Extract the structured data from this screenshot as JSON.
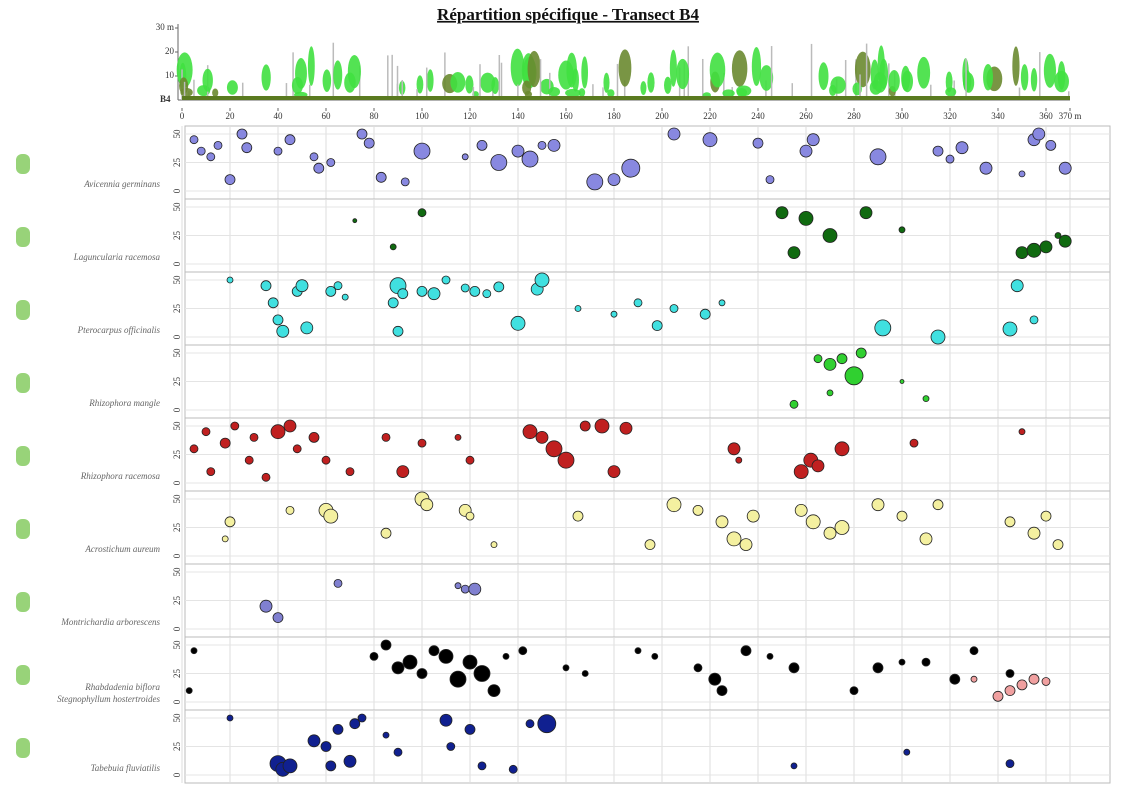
{
  "chart_data": {
    "type": "scatter",
    "title": "Répartition spécifique - Transect B4",
    "profile_label": "B4",
    "profile_ylim": [
      0,
      30
    ],
    "profile_yticks": [
      {
        "value": 30,
        "label": "30 m"
      },
      20,
      10
    ],
    "xlim": [
      0,
      370
    ],
    "xticks": [
      0,
      20,
      40,
      60,
      80,
      100,
      120,
      140,
      160,
      180,
      200,
      220,
      240,
      260,
      280,
      300,
      320,
      340,
      360,
      {
        "value": 370,
        "label": "370 m"
      }
    ],
    "ylim": [
      0,
      50
    ],
    "yticks": [
      0,
      25,
      50
    ],
    "grid": true,
    "panels": [
      {
        "series": [
          {
            "name": "Avicennia germinans",
            "color": "#8888e0",
            "x": [
              5,
              8,
              12,
              15,
              20,
              25,
              27,
              40,
              45,
              55,
              57,
              62,
              75,
              78,
              83,
              93,
              100,
              118,
              125,
              132,
              140,
              145,
              150,
              155,
              172,
              180,
              187,
              205,
              220,
              240,
              245,
              260,
              263,
              290,
              315,
              320,
              325,
              335,
              350,
              355,
              357,
              362,
              368
            ],
            "y": [
              45,
              35,
              30,
              40,
              10,
              50,
              38,
              35,
              45,
              30,
              20,
              25,
              50,
              42,
              12,
              8,
              35,
              30,
              40,
              25,
              35,
              28,
              40,
              40,
              8,
              10,
              20,
              50,
              45,
              42,
              10,
              35,
              45,
              30,
              35,
              28,
              38,
              20,
              15,
              45,
              50,
              40,
              20
            ],
            "sizes": [
              4,
              4,
              4,
              4,
              5,
              5,
              5,
              4,
              5,
              4,
              5,
              4,
              5,
              5,
              5,
              4,
              8,
              3,
              5,
              8,
              6,
              8,
              4,
              6,
              8,
              6,
              9,
              6,
              7,
              5,
              4,
              6,
              6,
              8,
              5,
              4,
              6,
              6,
              3,
              6,
              6,
              5,
              6
            ]
          }
        ]
      },
      {
        "series": [
          {
            "name": "Laguncularia racemosa",
            "color": "#106a10",
            "x": [
              72,
              88,
              100,
              250,
              255,
              260,
              270,
              285,
              300,
              350,
              355,
              360,
              365,
              368
            ],
            "y": [
              38,
              15,
              45,
              45,
              10,
              40,
              25,
              45,
              30,
              10,
              12,
              15,
              25,
              20
            ],
            "sizes": [
              2,
              3,
              4,
              6,
              6,
              7,
              7,
              6,
              3,
              6,
              7,
              6,
              3,
              6
            ]
          }
        ]
      },
      {
        "series": [
          {
            "name": "Pterocarpus officinalis",
            "color": "#40e0e0",
            "x": [
              20,
              35,
              38,
              40,
              42,
              48,
              50,
              52,
              62,
              65,
              68,
              88,
              90,
              92,
              90,
              100,
              105,
              110,
              118,
              122,
              127,
              132,
              140,
              148,
              150,
              165,
              180,
              190,
              198,
              205,
              218,
              225,
              292,
              315,
              345,
              348,
              355
            ],
            "y": [
              50,
              45,
              30,
              15,
              5,
              40,
              45,
              8,
              40,
              45,
              35,
              30,
              45,
              38,
              5,
              40,
              38,
              50,
              43,
              40,
              38,
              44,
              12,
              42,
              50,
              25,
              20,
              30,
              10,
              25,
              20,
              30,
              8,
              0,
              7,
              45,
              15
            ],
            "sizes": [
              3,
              5,
              5,
              5,
              6,
              5,
              6,
              6,
              5,
              4,
              3,
              5,
              8,
              5,
              5,
              5,
              6,
              4,
              4,
              5,
              4,
              5,
              7,
              6,
              7,
              3,
              3,
              4,
              5,
              4,
              5,
              3,
              8,
              7,
              7,
              6,
              4
            ]
          }
        ]
      },
      {
        "series": [
          {
            "name": "Rhizophora mangle",
            "color": "#30d030",
            "x": [
              255,
              265,
              270,
              270,
              275,
              280,
              283,
              300,
              310
            ],
            "y": [
              5,
              45,
              40,
              15,
              45,
              30,
              50,
              25,
              10
            ],
            "sizes": [
              4,
              4,
              6,
              3,
              5,
              9,
              5,
              2,
              3
            ]
          }
        ]
      },
      {
        "series": [
          {
            "name": "Rhizophora racemosa",
            "color": "#c02020",
            "x": [
              5,
              10,
              12,
              18,
              22,
              28,
              30,
              35,
              40,
              45,
              48,
              55,
              60,
              70,
              85,
              92,
              100,
              115,
              120,
              145,
              150,
              155,
              160,
              168,
              175,
              180,
              185,
              230,
              232,
              258,
              262,
              265,
              275,
              305,
              350
            ],
            "y": [
              30,
              45,
              10,
              35,
              50,
              20,
              40,
              5,
              45,
              50,
              30,
              40,
              20,
              10,
              40,
              10,
              35,
              40,
              20,
              45,
              40,
              30,
              20,
              50,
              50,
              10,
              48,
              30,
              20,
              10,
              20,
              15,
              30,
              35,
              45
            ],
            "sizes": [
              4,
              4,
              4,
              5,
              4,
              4,
              4,
              4,
              7,
              6,
              4,
              5,
              4,
              4,
              4,
              6,
              4,
              3,
              4,
              7,
              6,
              8,
              8,
              5,
              7,
              6,
              6,
              6,
              3,
              7,
              7,
              6,
              7,
              4,
              3
            ]
          }
        ]
      },
      {
        "series": [
          {
            "name": "Acrostichum aureum",
            "color": "#f4f0a0",
            "x": [
              18,
              20,
              45,
              60,
              62,
              85,
              100,
              102,
              118,
              120,
              130,
              165,
              195,
              205,
              215,
              225,
              230,
              235,
              238,
              258,
              263,
              270,
              275,
              290,
              300,
              310,
              315,
              345,
              355,
              360,
              365
            ],
            "y": [
              15,
              30,
              40,
              40,
              35,
              20,
              50,
              45,
              40,
              35,
              10,
              35,
              10,
              45,
              40,
              30,
              15,
              10,
              35,
              40,
              30,
              20,
              25,
              45,
              35,
              15,
              45,
              30,
              20,
              35,
              10
            ],
            "sizes": [
              3,
              5,
              4,
              7,
              7,
              5,
              7,
              6,
              6,
              4,
              3,
              5,
              5,
              7,
              5,
              6,
              7,
              6,
              6,
              6,
              7,
              6,
              7,
              6,
              5,
              6,
              5,
              5,
              6,
              5,
              5
            ]
          }
        ]
      },
      {
        "series": [
          {
            "name": "Montrichardia arborescens",
            "color": "#8080d0",
            "x": [
              35,
              40,
              65,
              115,
              118,
              122
            ],
            "y": [
              20,
              10,
              40,
              38,
              35,
              35
            ],
            "sizes": [
              6,
              5,
              4,
              3,
              4,
              6
            ]
          }
        ]
      },
      {
        "series": [
          {
            "name": "Rhabdadenia biflora",
            "color": "#000000",
            "x": [
              3,
              5,
              80,
              85,
              90,
              95,
              100,
              105,
              110,
              115,
              120,
              125,
              130,
              135,
              142,
              160,
              168,
              190,
              197,
              215,
              222,
              225,
              235,
              245,
              255,
              280,
              290,
              300,
              310,
              322,
              330,
              345
            ],
            "y": [
              10,
              45,
              40,
              50,
              30,
              35,
              25,
              45,
              40,
              20,
              35,
              25,
              10,
              40,
              45,
              30,
              25,
              45,
              40,
              30,
              20,
              10,
              45,
              40,
              30,
              10,
              30,
              35,
              35,
              20,
              45,
              25
            ],
            "sizes": [
              3,
              3,
              4,
              5,
              6,
              7,
              5,
              5,
              7,
              8,
              7,
              8,
              6,
              3,
              4,
              3,
              3,
              3,
              3,
              4,
              6,
              5,
              5,
              3,
              5,
              4,
              5,
              3,
              4,
              5,
              4,
              4
            ]
          },
          {
            "name": "Stegnophyllum hostertroides",
            "color": "#f0a0a0",
            "x": [
              330,
              340,
              345,
              350,
              355,
              360
            ],
            "y": [
              20,
              5,
              10,
              15,
              20,
              18
            ],
            "sizes": [
              3,
              5,
              5,
              5,
              5,
              4
            ]
          }
        ]
      },
      {
        "series": [
          {
            "name": "Tabebuia fluviatilis",
            "color": "#102090",
            "x": [
              20,
              40,
              42,
              45,
              55,
              60,
              62,
              65,
              70,
              72,
              75,
              85,
              90,
              110,
              112,
              120,
              125,
              138,
              145,
              152,
              255,
              302,
              345
            ],
            "y": [
              50,
              10,
              5,
              8,
              30,
              25,
              8,
              40,
              12,
              45,
              50,
              35,
              20,
              48,
              25,
              40,
              8,
              5,
              45,
              45,
              8,
              20,
              10
            ],
            "sizes": [
              3,
              8,
              7,
              7,
              6,
              5,
              5,
              5,
              6,
              5,
              4,
              3,
              4,
              6,
              4,
              5,
              4,
              4,
              4,
              9,
              3,
              3,
              4
            ]
          }
        ]
      }
    ]
  }
}
